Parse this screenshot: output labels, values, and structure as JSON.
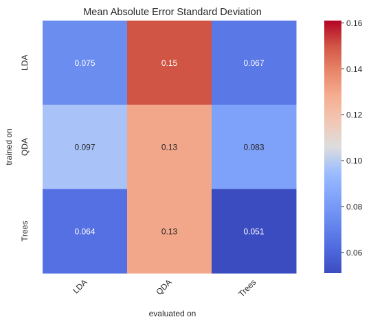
{
  "chart_data": {
    "type": "heatmap",
    "title": "Mean Absolute Error Standard Deviation",
    "xlabel": "evaluated on",
    "ylabel": "trained on",
    "x_categories": [
      "LDA",
      "QDA",
      "Trees"
    ],
    "y_categories": [
      "LDA",
      "QDA",
      "Trees"
    ],
    "values": [
      [
        0.075,
        0.15,
        0.067
      ],
      [
        0.097,
        0.13,
        0.083
      ],
      [
        0.064,
        0.13,
        0.051
      ]
    ],
    "cell_labels": [
      [
        "0.075",
        "0.15",
        "0.067"
      ],
      [
        "0.097",
        "0.13",
        "0.083"
      ],
      [
        "0.064",
        "0.13",
        "0.051"
      ]
    ],
    "colormap": "coolwarm",
    "color_range": [
      0.051,
      0.161
    ],
    "colorbar_ticks": [
      0.06,
      0.08,
      0.1,
      0.12,
      0.14,
      0.16
    ],
    "colorbar_tick_labels": [
      "0.06",
      "0.08",
      "0.10",
      "0.12",
      "0.14",
      "0.16"
    ],
    "grid": false,
    "legend": "colorbar-right"
  }
}
